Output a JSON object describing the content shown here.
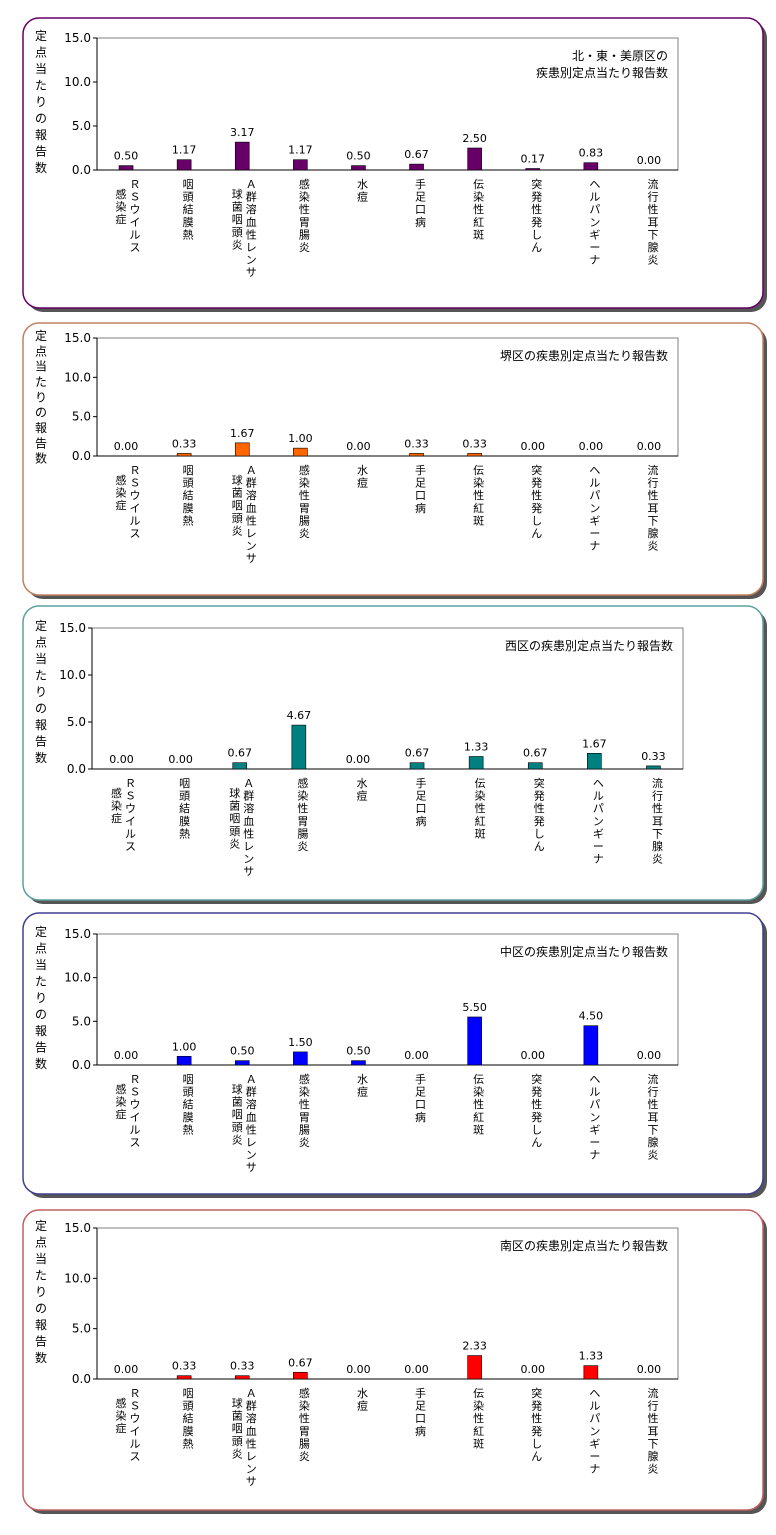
{
  "categories": [
    [
      "Ｒ",
      "Ｓ",
      "ウ",
      "イ",
      "ル",
      "ス",
      "|",
      "感",
      "染",
      "症"
    ],
    [
      "咽",
      "頭",
      "結",
      "膜",
      "熱"
    ],
    [
      "Ａ",
      "群",
      "溶",
      "血",
      "性",
      "レ",
      "ン",
      "サ",
      "|",
      "球",
      "菌",
      "咽",
      "頭",
      "炎"
    ],
    [
      "感",
      "染",
      "性",
      "胃",
      "腸",
      "炎"
    ],
    [
      "水",
      "痘"
    ],
    [
      "手",
      "足",
      "口",
      "病"
    ],
    [
      "伝",
      "染",
      "性",
      "紅",
      "斑"
    ],
    [
      "突",
      "発",
      "性",
      "発",
      "し",
      "ん"
    ],
    [
      "ヘ",
      "ル",
      "パ",
      "ン",
      "ギ",
      "ー",
      "ナ"
    ],
    [
      "流",
      "行",
      "性",
      "耳",
      "下",
      "腺",
      "炎"
    ]
  ],
  "ylabel": [
    "定",
    "点",
    "当",
    "た",
    "り",
    "の",
    "報",
    "告",
    "数"
  ],
  "yticks": [
    "0.0",
    "5.0",
    "10.0",
    "15.0"
  ],
  "colors": {
    "purple": "#660066",
    "orange": "#ff6600",
    "teal": "#008080",
    "blue": "#0000ff",
    "red": "#ff0000",
    "border_purple": "#660066",
    "border_orange": "#c08060",
    "border_teal": "#5fa0a0",
    "border_blue": "#404090",
    "border_red": "#c06060"
  },
  "chart_data": [
    {
      "type": "bar",
      "title": [
        "北・東・美原区の",
        "疾患別定点当たり報告数"
      ],
      "values": [
        0.5,
        1.17,
        3.17,
        1.17,
        0.5,
        0.67,
        2.5,
        0.17,
        0.83,
        0.0
      ],
      "labels": [
        "0.50",
        "1.17",
        "3.17",
        "1.17",
        "0.50",
        "0.67",
        "2.50",
        "0.17",
        "0.83",
        "0.00"
      ],
      "ylim": [
        0,
        15
      ],
      "bar_color": "purple",
      "border_color": "border_purple"
    },
    {
      "type": "bar",
      "title": [
        "堺区の疾患別定点当たり報告数"
      ],
      "values": [
        0.0,
        0.33,
        1.67,
        1.0,
        0.0,
        0.33,
        0.33,
        0.0,
        0.0,
        0.0
      ],
      "labels": [
        "0.00",
        "0.33",
        "1.67",
        "1.00",
        "0.00",
        "0.33",
        "0.33",
        "0.00",
        "0.00",
        "0.00"
      ],
      "ylim": [
        0,
        15
      ],
      "bar_color": "orange",
      "border_color": "border_orange"
    },
    {
      "type": "bar",
      "title": [
        "西区の疾患別定点当たり報告数"
      ],
      "values": [
        0.0,
        0.0,
        0.67,
        4.67,
        0.0,
        0.67,
        1.33,
        0.67,
        1.67,
        0.33
      ],
      "labels": [
        "0.00",
        "0.00",
        "0.67",
        "4.67",
        "0.00",
        "0.67",
        "1.33",
        "0.67",
        "1.67",
        "0.33"
      ],
      "ylim": [
        0,
        15
      ],
      "bar_color": "teal",
      "border_color": "border_teal"
    },
    {
      "type": "bar",
      "title": [
        "中区の疾患別定点当たり報告数"
      ],
      "values": [
        0.0,
        1.0,
        0.5,
        1.5,
        0.5,
        0.0,
        5.5,
        0.0,
        4.5,
        0.0
      ],
      "labels": [
        "0.00",
        "1.00",
        "0.50",
        "1.50",
        "0.50",
        "0.00",
        "5.50",
        "0.00",
        "4.50",
        "0.00"
      ],
      "ylim": [
        0,
        15
      ],
      "bar_color": "blue",
      "border_color": "border_blue"
    },
    {
      "type": "bar",
      "title": [
        "南区の疾患別定点当たり報告数"
      ],
      "values": [
        0.0,
        0.33,
        0.33,
        0.67,
        0.0,
        0.0,
        2.33,
        0.0,
        1.33,
        0.0
      ],
      "labels": [
        "0.00",
        "0.33",
        "0.33",
        "0.67",
        "0.00",
        "0.00",
        "2.33",
        "0.00",
        "1.33",
        "0.00"
      ],
      "ylim": [
        0,
        15
      ],
      "bar_color": "red",
      "border_color": "border_red"
    }
  ]
}
